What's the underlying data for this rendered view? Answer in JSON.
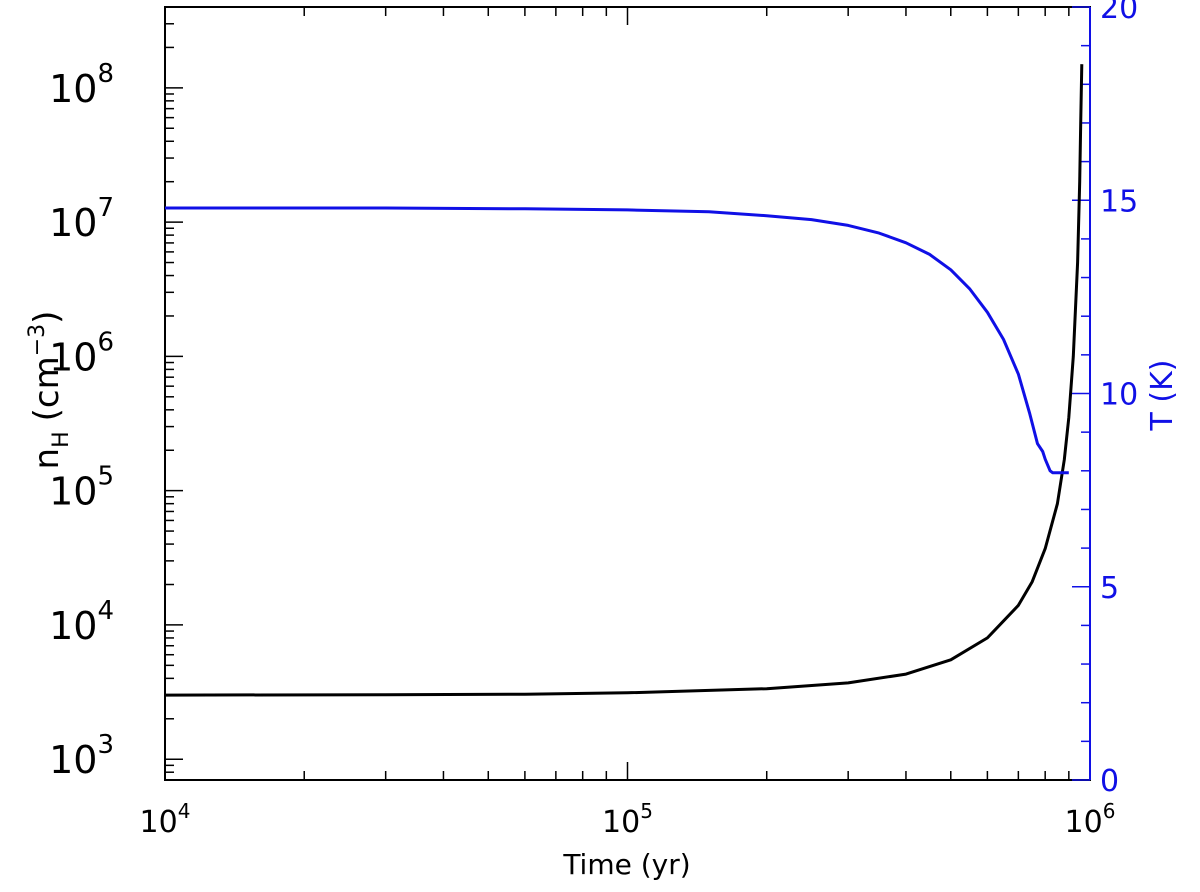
{
  "colors": {
    "density": "#000000",
    "temperature": "#1010e6",
    "axis_left": "#000000",
    "axis_right": "#1010e6"
  },
  "chart_data": {
    "type": "line",
    "title": "",
    "xlabel": "Time (yr)",
    "xscale": "log",
    "xlim": [
      10000,
      1000000
    ],
    "x_ticks": [
      {
        "value": 10000,
        "base": "10",
        "exp": "4"
      },
      {
        "value": 100000,
        "base": "10",
        "exp": "5"
      },
      {
        "value": 1000000,
        "base": "10",
        "exp": "6"
      }
    ],
    "y_left": {
      "label_main": "n",
      "label_sub": "H",
      "label_unit": "(cm",
      "label_unit_exp": "−3",
      "label_close": ")",
      "scale": "log",
      "lim": [
        700,
        400000000
      ],
      "ticks": [
        {
          "value": 1000,
          "base": "10",
          "exp": "3"
        },
        {
          "value": 10000,
          "base": "10",
          "exp": "4"
        },
        {
          "value": 100000,
          "base": "10",
          "exp": "5"
        },
        {
          "value": 1000000,
          "base": "10",
          "exp": "6"
        },
        {
          "value": 10000000,
          "base": "10",
          "exp": "7"
        },
        {
          "value": 100000000,
          "base": "10",
          "exp": "8"
        }
      ]
    },
    "y_right": {
      "label": "T (K)",
      "scale": "linear",
      "lim": [
        0,
        20
      ],
      "ticks": [
        "0",
        "5",
        "10",
        "15",
        "20"
      ]
    },
    "grid": false,
    "series": [
      {
        "axis": "left",
        "color": "#000000",
        "x": [
          10000,
          30000,
          60000,
          100000,
          200000,
          300000,
          400000,
          500000,
          600000,
          700000,
          750000,
          800000,
          850000,
          880000,
          900000,
          920000,
          940000,
          950000,
          955000,
          960000
        ],
        "y": [
          3000,
          3020,
          3050,
          3120,
          3350,
          3700,
          4300,
          5500,
          8000,
          14000,
          21000,
          37000,
          80000,
          170000,
          350000,
          1000000,
          5000000,
          20000000,
          60000000,
          150000000
        ]
      },
      {
        "axis": "right",
        "color": "#1010e6",
        "x": [
          10000,
          30000,
          60000,
          100000,
          150000,
          200000,
          250000,
          300000,
          350000,
          400000,
          450000,
          500000,
          550000,
          600000,
          650000,
          700000,
          740000,
          770000,
          790000,
          800000,
          820000,
          830000,
          900000
        ],
        "y": [
          14.8,
          14.8,
          14.78,
          14.75,
          14.7,
          14.6,
          14.5,
          14.35,
          14.15,
          13.9,
          13.6,
          13.2,
          12.7,
          12.1,
          11.4,
          10.5,
          9.5,
          8.7,
          8.5,
          8.3,
          8.0,
          7.95,
          7.95
        ]
      }
    ]
  }
}
